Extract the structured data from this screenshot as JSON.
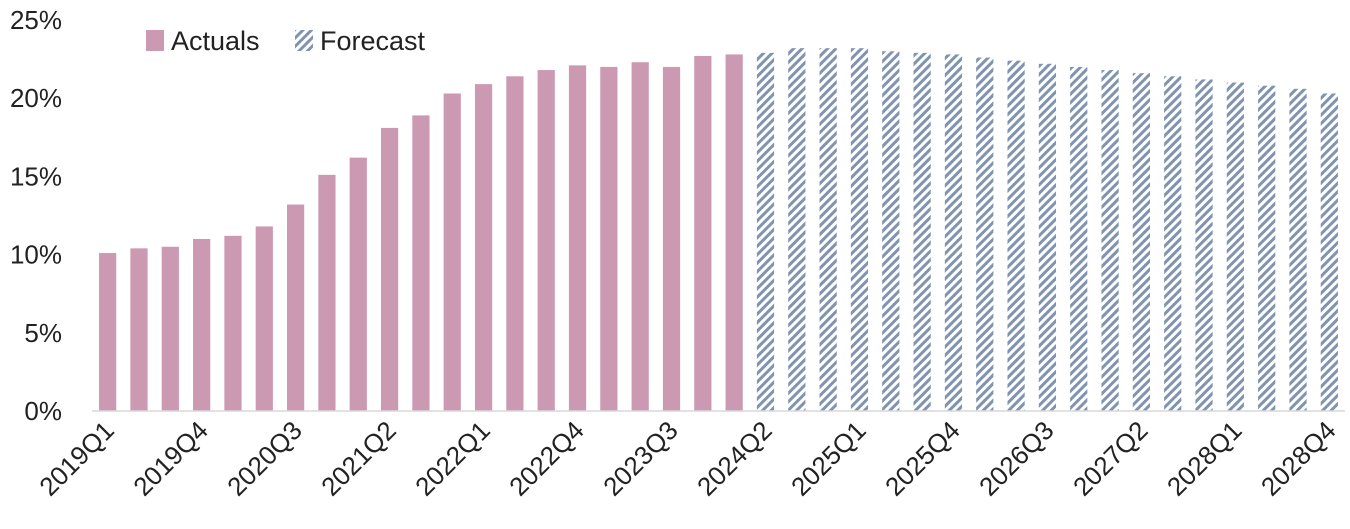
{
  "chart_data": {
    "type": "bar",
    "categories": [
      "2019Q1",
      "2019Q2",
      "2019Q3",
      "2019Q4",
      "2020Q1",
      "2020Q2",
      "2020Q3",
      "2020Q4",
      "2021Q1",
      "2021Q2",
      "2021Q3",
      "2021Q4",
      "2022Q1",
      "2022Q2",
      "2022Q3",
      "2022Q4",
      "2023Q1",
      "2023Q2",
      "2023Q3",
      "2023Q4",
      "2024Q1",
      "2024Q2",
      "2024Q3",
      "2024Q4",
      "2025Q1",
      "2025Q2",
      "2025Q3",
      "2025Q4",
      "2026Q1",
      "2026Q2",
      "2026Q3",
      "2026Q4",
      "2027Q1",
      "2027Q2",
      "2027Q3",
      "2027Q4",
      "2028Q1",
      "2028Q2",
      "2028Q3",
      "2028Q4"
    ],
    "tick_labels": [
      "2019Q1",
      "2019Q4",
      "2020Q3",
      "2021Q2",
      "2022Q1",
      "2022Q4",
      "2023Q3",
      "2024Q2",
      "2025Q1",
      "2025Q4",
      "2026Q3",
      "2027Q2",
      "2028Q1",
      "2028Q4"
    ],
    "series": [
      {
        "name": "Actuals",
        "color": "#cc99b3",
        "values": [
          10.1,
          10.4,
          10.5,
          11.0,
          11.2,
          11.8,
          13.2,
          15.1,
          16.2,
          18.1,
          18.9,
          20.3,
          20.9,
          21.4,
          21.8,
          22.1,
          22.0,
          22.3,
          22.0,
          22.7,
          22.8,
          null,
          null,
          null,
          null,
          null,
          null,
          null,
          null,
          null,
          null,
          null,
          null,
          null,
          null,
          null,
          null,
          null,
          null,
          null
        ]
      },
      {
        "name": "Forecast",
        "color": "#8094b0",
        "values": [
          null,
          null,
          null,
          null,
          null,
          null,
          null,
          null,
          null,
          null,
          null,
          null,
          null,
          null,
          null,
          null,
          null,
          null,
          null,
          null,
          null,
          22.9,
          23.2,
          23.2,
          23.2,
          23.0,
          22.9,
          22.8,
          22.6,
          22.4,
          22.2,
          22.0,
          21.8,
          21.6,
          21.4,
          21.2,
          21.0,
          20.8,
          20.6,
          20.3
        ]
      }
    ],
    "y_ticks": [
      "0%",
      "5%",
      "10%",
      "15%",
      "20%",
      "25%"
    ],
    "ylim": [
      0,
      25
    ],
    "legend_position": "top-left",
    "grid": false
  }
}
